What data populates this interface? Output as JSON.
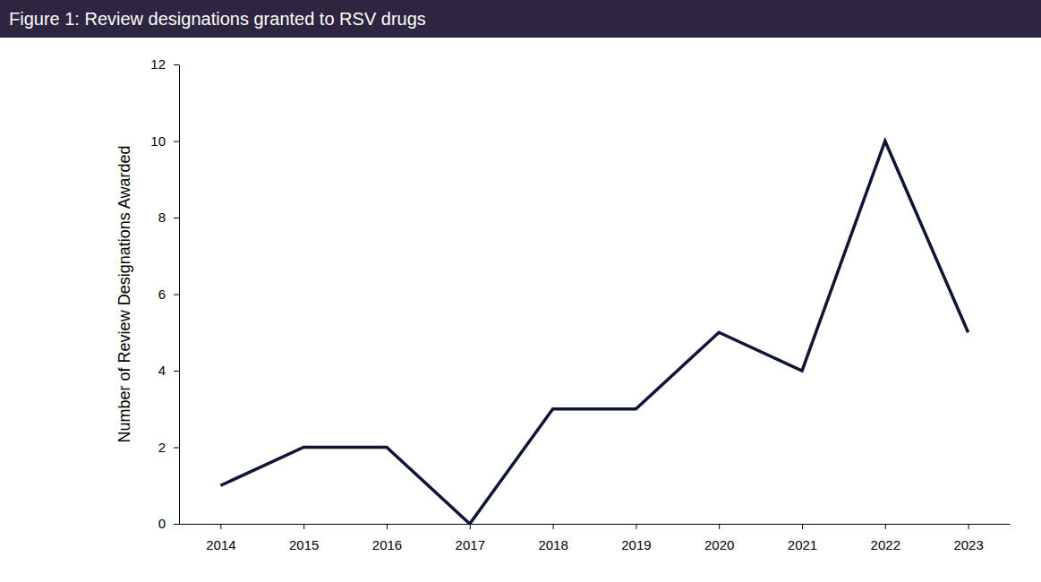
{
  "chart_data": {
    "type": "line",
    "title": "Figure 1: Review designations granted to RSV drugs",
    "y_label": "Number of Review Designations Awarded",
    "categories": [
      "2014",
      "2015",
      "2016",
      "2017",
      "2018",
      "2019",
      "2020",
      "2021",
      "2022",
      "2023"
    ],
    "values": [
      1,
      2,
      2,
      0,
      3,
      3,
      5,
      4,
      10,
      5
    ],
    "color": "#0f1535",
    "ylim": [
      0,
      12
    ],
    "yticks": [
      0,
      2,
      4,
      6,
      8,
      10,
      12
    ],
    "grid": false
  }
}
